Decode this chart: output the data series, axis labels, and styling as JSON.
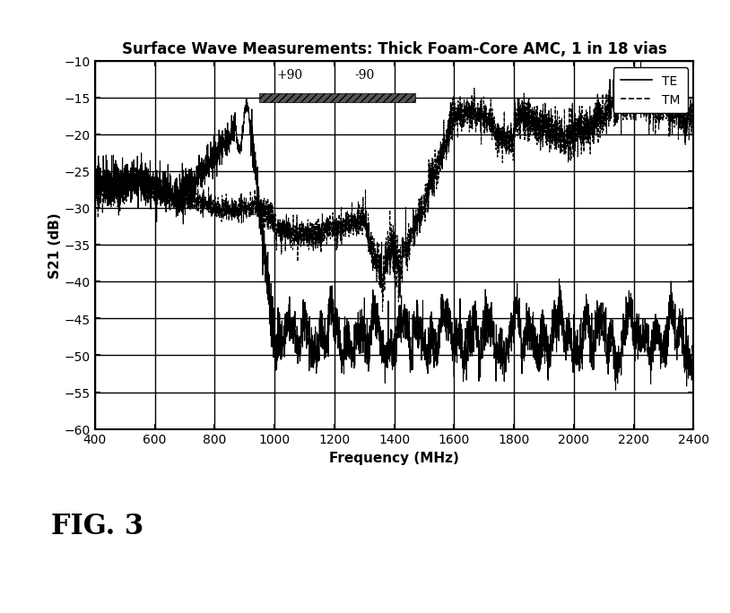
{
  "title": "Surface Wave Measurements: Thick Foam-Core AMC, 1 in 18 vias",
  "xlabel": "Frequency (MHz)",
  "ylabel": "S21 (dB)",
  "xlim": [
    400,
    2400
  ],
  "ylim": [
    -60,
    -10
  ],
  "yticks": [
    -10,
    -15,
    -20,
    -25,
    -30,
    -35,
    -40,
    -45,
    -50,
    -55,
    -60
  ],
  "xticks": [
    400,
    600,
    800,
    1000,
    1200,
    1400,
    1600,
    1800,
    2000,
    2200,
    2400
  ],
  "band_start": 950,
  "band_end": 1470,
  "band_y": -15,
  "plus90_x": 1050,
  "minus90_x": 1300,
  "plus90_label": "+90",
  "minus90_label": "-90",
  "background_color": "#ffffff",
  "title_fontsize": 12,
  "label_fontsize": 11,
  "fig3_fontsize": 22
}
